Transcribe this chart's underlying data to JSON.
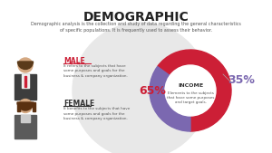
{
  "title": "DEMOGRAPHIC",
  "subtitle": "Demographic analysis is the collection and study of data regarding the general characteristics\nof specific populations. It is frequently used to assess their behavior.",
  "male_label": "MALE",
  "male_text": "It refers to the subjects that have\nsome purposes and goals for the\nbusiness & company organization.",
  "female_label": "FEMALE",
  "female_text": "It benefits to the subjects that have\nsome purposes and goals for the\nbusiness & company organization.",
  "donut_values": [
    65,
    35
  ],
  "donut_colors": [
    "#cc1f36",
    "#7b68b0"
  ],
  "donut_label_65": "65%",
  "donut_label_35": "35%",
  "income_label": "INCOME",
  "income_text": "Elements to the subjects\nthat have some purposes\nand target goals.",
  "bg_color": "#ffffff",
  "title_color": "#222222",
  "subtitle_color": "#555555",
  "male_label_color": "#cc1f36",
  "female_label_color": "#333333",
  "pct65_color": "#cc1f36",
  "pct35_color": "#7b68b0",
  "watermark_color": "#e8e8e8"
}
